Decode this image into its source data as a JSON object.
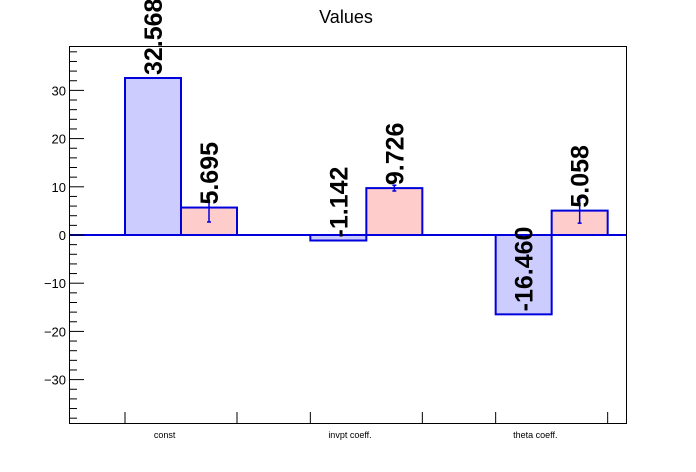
{
  "chart_data": {
    "type": "bar",
    "title": "Values",
    "categories": [
      "const",
      "invpt coeff.",
      "theta coeff."
    ],
    "series": [
      {
        "values": [
          32.568,
          -1.142,
          -16.46
        ],
        "labels": [
          "32.568",
          "-1.142",
          "-16.460"
        ],
        "errors": [
          0,
          0,
          0
        ],
        "fill": "#ccccff",
        "stroke": "#0000dd"
      },
      {
        "values": [
          5.695,
          9.726,
          5.058
        ],
        "labels": [
          "5.695",
          "9.726",
          "5.058"
        ],
        "errors": [
          3.0,
          0.6,
          2.6
        ],
        "fill": "#ffcccc",
        "stroke": "#0000dd"
      }
    ],
    "ylim": [
      -39,
      39
    ],
    "yticks": [
      -30,
      -20,
      -10,
      0,
      10,
      20,
      30
    ],
    "xlabel": "",
    "ylabel": "",
    "grid": false,
    "zero_line_color": "#0000dd"
  }
}
